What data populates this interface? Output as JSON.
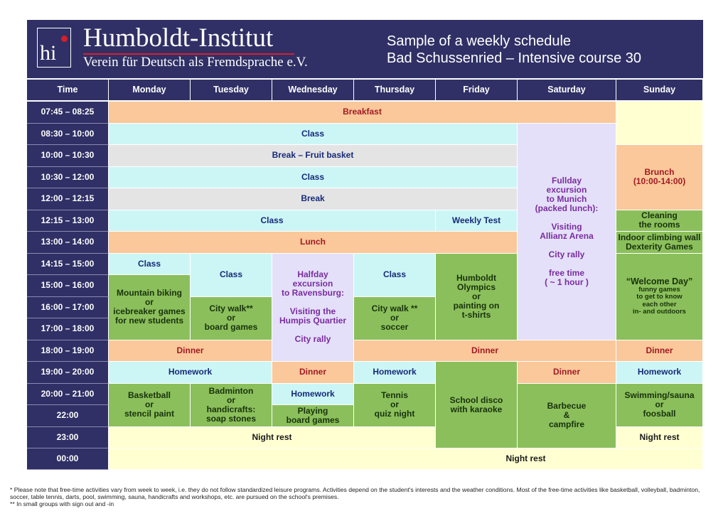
{
  "header": {
    "institute_name": "Humboldt-Institut",
    "institute_subtitle": "Verein für Deutsch als Fremdsprache e.V.",
    "logo_text": "hi",
    "title": "Sample of a weekly schedule",
    "subtitle": "Bad Schussenried – Intensive course 30"
  },
  "columns": {
    "time": "Time",
    "monday": "Monday",
    "tuesday": "Tuesday",
    "wednesday": "Wednesday",
    "thursday": "Thursday",
    "friday": "Friday",
    "saturday": "Saturday",
    "sunday": "Sunday"
  },
  "times": [
    "07:45 – 08:25",
    "08:30 – 10:00",
    "10:00 – 10:30",
    "10:30 – 12:00",
    "12:00 – 12:15",
    "12:15 – 13:00",
    "13:00 – 14:00",
    "14:15 – 15:00",
    "15:00 – 16:00",
    "16:00 – 17:00",
    "17:00 – 18:00",
    "18:00 – 19:00",
    "19:00 – 20:00",
    "20:00 – 21:00",
    "22:00",
    "23:00",
    "00:00"
  ],
  "activities": {
    "breakfast": "Breakfast",
    "class_morning": "Class",
    "break_fruit": "Break – Fruit basket",
    "class_midmorning": "Class",
    "break_short": "Break",
    "class_noon": "Class",
    "weekly_test": "Weekly Test",
    "lunch": "Lunch",
    "sat_excursion": "Fullday\nexcursion\nto Munich\n(packed lunch):\n\nVisiting\nAllianz Arena\n\nCity rally\n\nfree time\n( ~ 1 hour )",
    "sun_brunch": "Brunch\n(10:00-14:00)",
    "sun_cleaning": "Cleaning\nthe rooms",
    "sun_climbing": "Indoor climbing wall\nDexterity Games",
    "mon_class": "Class",
    "mon_afternoon": "Mountain biking\nor\nicebreaker games\nfor new students",
    "tue_class": "Class",
    "tue_afternoon": "City walk**\nor\nboard games",
    "wed_excursion": "Halfday\nexcursion\nto Ravensburg:\n\nVisiting the\nHumpis Quartier\n\nCity rally",
    "thu_class": "Class",
    "thu_afternoon": "City walk **\nor\nsoccer",
    "fri_afternoon": "Humboldt\nOlympics\nor\npainting on\nt-shirts",
    "sun_welcome_title": "“Welcome Day”",
    "sun_welcome_desc": "funny games\nto get to know\neach other\nin- and outdoors",
    "dinner_mon_tue": "Dinner",
    "dinner_thu_sat": "Dinner",
    "dinner_sun": "Dinner",
    "homework_mon_tue": "Homework",
    "wed_dinner": "Dinner",
    "thu_homework": "Homework",
    "sat_dinner": "Dinner",
    "sun_homework": "Homework",
    "mon_evening": "Basketball\nor\nstencil paint",
    "tue_evening": "Badminton\nor\nhandicrafts:\nsoap stones",
    "wed_homework": "Homework",
    "wed_evening": "Playing\nboard games",
    "thu_evening": "Tennis\nor\nquiz night",
    "fri_evening": "School disco\nwith karaoke",
    "sat_evening": "Barbecue\n&\ncampfire",
    "sun_evening": "Swimming/sauna\nor\nfoosball",
    "night_rest_1": "Night rest",
    "night_rest_sun": "Night rest",
    "night_rest_2": "Night rest"
  },
  "footnotes": {
    "note1": "* Please note that free-time activities vary from week to week, i.e. they do not follow standardized leisure programs. Activities depend on the student's interests and the weather conditions. Most of the free-time activities like basketball, volleyball, badminton, soccer, table tennis, darts, pool, swimming, sauna, handicrafts and workshops, etc. are pursued on the school's premises.",
    "note2": "** In small groups with sign out and -in"
  },
  "colors": {
    "navy": "#303066",
    "peach": "#fac89a",
    "cyan": "#ccf6f6",
    "grey": "#e4e4e4",
    "green": "#8bbf5b",
    "lavender": "#e4e0f9",
    "yellow": "#ffffd2",
    "logo_red": "#d81e2a"
  }
}
